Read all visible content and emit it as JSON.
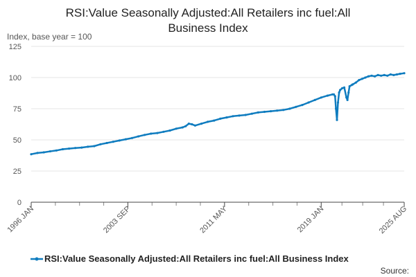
{
  "chart_data": {
    "type": "line",
    "title_lines": [
      "RSI:Value Seasonally Adjusted:All Retailers inc fuel:All",
      "Business Index"
    ],
    "ylabel": "Index, base year = 100",
    "ylim": [
      0,
      125
    ],
    "yticks": [
      0,
      25,
      50,
      75,
      100,
      125
    ],
    "xlim": [
      1996.0,
      2025.583
    ],
    "xticks": [
      {
        "label": "1996 JAN",
        "x": 1996.0
      },
      {
        "label": "2003 SEP",
        "x": 2003.667
      },
      {
        "label": "2011 MAY",
        "x": 2011.333
      },
      {
        "label": "2019 JAN",
        "x": 2019.0
      },
      {
        "label": "2025 AUG",
        "x": 2025.583
      }
    ],
    "grid": true,
    "legend_position": "bottom",
    "color": "#0f7cbf",
    "series": [
      {
        "name": "RSI:Value Seasonally Adjusted:All Retailers inc fuel:All Business Index",
        "x": [
          1996.0,
          1996.5,
          1997.0,
          1997.5,
          1998.0,
          1998.5,
          1999.0,
          1999.5,
          2000.0,
          2000.5,
          2001.0,
          2001.5,
          2002.0,
          2002.5,
          2003.0,
          2003.5,
          2004.0,
          2004.5,
          2005.0,
          2005.5,
          2006.0,
          2006.5,
          2007.0,
          2007.5,
          2008.0,
          2008.25,
          2008.5,
          2008.75,
          2009.0,
          2009.5,
          2010.0,
          2010.5,
          2011.0,
          2011.5,
          2012.0,
          2012.5,
          2013.0,
          2013.5,
          2014.0,
          2014.5,
          2015.0,
          2015.5,
          2016.0,
          2016.5,
          2017.0,
          2017.5,
          2018.0,
          2018.5,
          2019.0,
          2019.5,
          2019.9,
          2020.0,
          2020.1,
          2020.17,
          2020.25,
          2020.33,
          2020.42,
          2020.5,
          2020.67,
          2020.83,
          2021.0,
          2021.08,
          2021.17,
          2021.25,
          2021.42,
          2021.5,
          2021.75,
          2022.0,
          2022.25,
          2022.5,
          2022.75,
          2023.0,
          2023.25,
          2023.5,
          2023.75,
          2024.0,
          2024.25,
          2024.5,
          2024.75,
          2025.0,
          2025.25,
          2025.583
        ],
        "values": [
          38.5,
          39.5,
          40.0,
          40.8,
          41.5,
          42.5,
          43.0,
          43.5,
          43.8,
          44.5,
          45.0,
          46.5,
          47.5,
          48.5,
          49.5,
          50.5,
          51.5,
          52.8,
          54.0,
          55.0,
          55.5,
          56.5,
          57.5,
          59.0,
          60.0,
          61.0,
          63.0,
          62.5,
          61.5,
          63.0,
          64.5,
          65.5,
          67.0,
          68.0,
          69.0,
          69.5,
          70.0,
          71.0,
          72.0,
          72.5,
          73.0,
          73.5,
          74.0,
          75.0,
          76.5,
          78.0,
          80.0,
          82.0,
          84.0,
          85.5,
          86.5,
          86.5,
          85.0,
          75.0,
          66.0,
          80.0,
          88.0,
          90.0,
          91.5,
          92.0,
          84.0,
          82.0,
          88.0,
          93.0,
          94.0,
          94.5,
          96.0,
          98.0,
          99.0,
          100.0,
          101.0,
          101.5,
          101.0,
          102.0,
          101.5,
          102.0,
          101.5,
          102.5,
          102.0,
          102.5,
          103.0,
          103.5
        ]
      }
    ]
  },
  "legend": {
    "label": "RSI:Value Seasonally Adjusted:All Retailers inc fuel:All Business Index"
  },
  "source_label": "Source:"
}
